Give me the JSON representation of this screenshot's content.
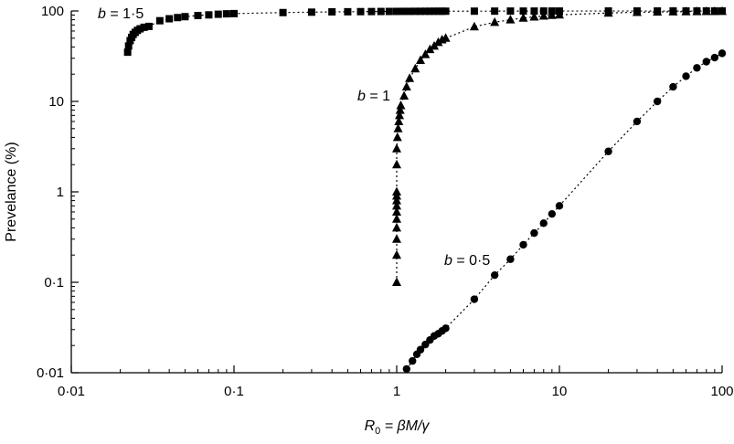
{
  "chart_data": {
    "type": "scatter",
    "xscale": "log",
    "yscale": "log",
    "xlim": [
      0.01,
      100
    ],
    "ylim": [
      0.01,
      100
    ],
    "xlabel": {
      "base": "R",
      "sub": "0",
      "rest": " = βM/γ"
    },
    "ylabel": "Prevelance (%)",
    "grid": false,
    "xticks": [
      {
        "value": 0.01,
        "label": "0·01"
      },
      {
        "value": 0.1,
        "label": "0·1"
      },
      {
        "value": 1,
        "label": "1"
      },
      {
        "value": 10,
        "label": "10"
      },
      {
        "value": 100,
        "label": "100"
      }
    ],
    "yticks": [
      {
        "value": 0.01,
        "label": "0·01"
      },
      {
        "value": 0.1,
        "label": "0·1"
      },
      {
        "value": 1,
        "label": "1"
      },
      {
        "value": 10,
        "label": "10"
      },
      {
        "value": 100,
        "label": "100"
      }
    ],
    "series": [
      {
        "name": "b = 1·5",
        "label_var": "b",
        "label_rest": " = 1·5",
        "marker": "square",
        "points": [
          [
            0.0222,
            35
          ],
          [
            0.0225,
            41
          ],
          [
            0.023,
            47
          ],
          [
            0.0235,
            51
          ],
          [
            0.024,
            55
          ],
          [
            0.0247,
            58
          ],
          [
            0.0255,
            61
          ],
          [
            0.0265,
            63.5
          ],
          [
            0.028,
            66
          ],
          [
            0.03,
            67.5
          ],
          [
            0.035,
            78
          ],
          [
            0.04,
            82
          ],
          [
            0.045,
            84.5
          ],
          [
            0.05,
            86.5
          ],
          [
            0.06,
            89
          ],
          [
            0.07,
            90.5
          ],
          [
            0.08,
            92
          ],
          [
            0.09,
            93
          ],
          [
            0.1,
            93.5
          ],
          [
            0.2,
            96
          ],
          [
            0.3,
            97
          ],
          [
            0.4,
            97.7
          ],
          [
            0.5,
            98
          ],
          [
            0.6,
            98.3
          ],
          [
            0.7,
            98.5
          ],
          [
            0.8,
            98.7
          ],
          [
            0.9,
            98.8
          ],
          [
            1,
            98.9
          ],
          [
            1.1,
            99
          ],
          [
            1.2,
            99
          ],
          [
            1.3,
            99.1
          ],
          [
            1.4,
            99.1
          ],
          [
            1.5,
            99.2
          ],
          [
            1.6,
            99.2
          ],
          [
            1.7,
            99.3
          ],
          [
            1.8,
            99.3
          ],
          [
            1.9,
            99.3
          ],
          [
            2,
            99.4
          ],
          [
            3,
            99.5
          ],
          [
            4,
            99.6
          ],
          [
            5,
            99.7
          ],
          [
            6,
            99.7
          ],
          [
            7,
            99.7
          ],
          [
            8,
            99.8
          ],
          [
            9,
            99.8
          ],
          [
            10,
            99.8
          ],
          [
            20,
            99.9
          ],
          [
            30,
            99.9
          ],
          [
            40,
            99.9
          ],
          [
            50,
            99.9
          ],
          [
            60,
            99.9
          ],
          [
            70,
            99.9
          ],
          [
            80,
            99.9
          ],
          [
            90,
            99.9
          ],
          [
            100,
            99.9
          ]
        ]
      },
      {
        "name": "b = 1",
        "label_var": "b",
        "label_rest": " = 1",
        "marker": "triangle",
        "points": [
          [
            1.0,
            0.1
          ],
          [
            1.0,
            0.2
          ],
          [
            1.0,
            0.3
          ],
          [
            1.0,
            0.4
          ],
          [
            1.0,
            0.5
          ],
          [
            1.0,
            0.6
          ],
          [
            1.0,
            0.7
          ],
          [
            1.0,
            0.8
          ],
          [
            1.0,
            0.9
          ],
          [
            1.0,
            1.0
          ],
          [
            1.0,
            2
          ],
          [
            1.0,
            3
          ],
          [
            1.01,
            4
          ],
          [
            1.02,
            5
          ],
          [
            1.03,
            6
          ],
          [
            1.04,
            7
          ],
          [
            1.05,
            8
          ],
          [
            1.06,
            9
          ],
          [
            1.11,
            11.5
          ],
          [
            1.15,
            14.5
          ],
          [
            1.2,
            18
          ],
          [
            1.3,
            23
          ],
          [
            1.4,
            28.5
          ],
          [
            1.5,
            33
          ],
          [
            1.6,
            37.5
          ],
          [
            1.7,
            41
          ],
          [
            1.8,
            45
          ],
          [
            1.9,
            48
          ],
          [
            2,
            50
          ],
          [
            3,
            67
          ],
          [
            4,
            75
          ],
          [
            5,
            80
          ],
          [
            6,
            83.5
          ],
          [
            7,
            86
          ],
          [
            8,
            88
          ],
          [
            9,
            89.5
          ],
          [
            10,
            90.5
          ],
          [
            20,
            95
          ],
          [
            30,
            96.7
          ],
          [
            40,
            97.5
          ],
          [
            50,
            98
          ],
          [
            60,
            98.3
          ],
          [
            70,
            98.6
          ],
          [
            80,
            98.8
          ],
          [
            90,
            98.9
          ],
          [
            100,
            99
          ]
        ]
      },
      {
        "name": "b = 0·5",
        "label_var": "b",
        "label_rest": " = 0·5",
        "marker": "circle",
        "points": [
          [
            1.15,
            0.011
          ],
          [
            1.25,
            0.0135
          ],
          [
            1.33,
            0.016
          ],
          [
            1.4,
            0.018
          ],
          [
            1.5,
            0.0205
          ],
          [
            1.6,
            0.023
          ],
          [
            1.7,
            0.0255
          ],
          [
            1.8,
            0.027
          ],
          [
            1.9,
            0.029
          ],
          [
            2,
            0.031
          ],
          [
            3,
            0.065
          ],
          [
            4,
            0.12
          ],
          [
            5,
            0.18
          ],
          [
            6,
            0.26
          ],
          [
            7,
            0.35
          ],
          [
            8,
            0.45
          ],
          [
            9,
            0.57
          ],
          [
            10,
            0.7
          ],
          [
            20,
            2.8
          ],
          [
            30,
            6
          ],
          [
            40,
            10
          ],
          [
            50,
            14.5
          ],
          [
            60,
            19
          ],
          [
            70,
            23.5
          ],
          [
            80,
            27.5
          ],
          [
            90,
            30.5
          ],
          [
            100,
            34
          ]
        ]
      }
    ]
  }
}
